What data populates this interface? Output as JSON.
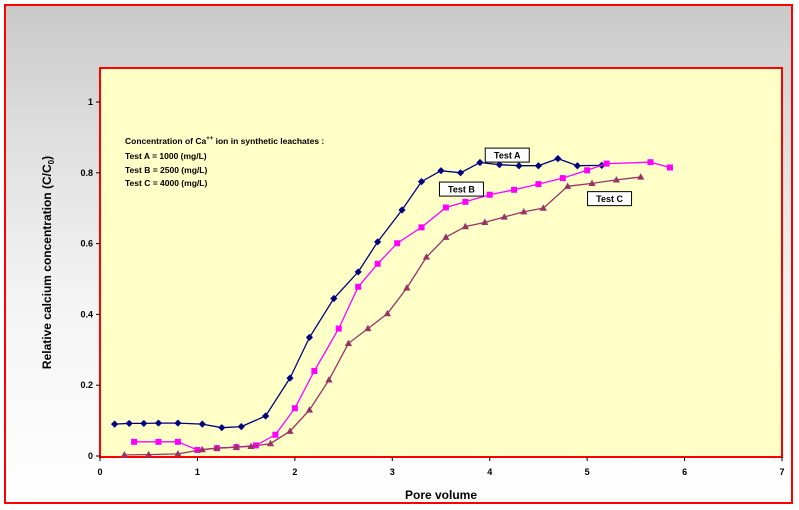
{
  "chart_data": {
    "type": "line",
    "xlabel": "Pore volume",
    "ylabel_main": "Relative calcium concentration (C/C",
    "ylabel_sub": "0",
    "ylabel_end": ")",
    "xlim": [
      0,
      7
    ],
    "ylim": [
      0,
      1.1
    ],
    "xticks": [
      0,
      1,
      2,
      3,
      4,
      5,
      6,
      7
    ],
    "yticks": [
      0,
      0.2,
      0.4,
      0.6,
      0.8,
      1
    ],
    "ytick_labels": [
      "0",
      "0.2",
      "0.4",
      "0.6",
      "0.8",
      "1"
    ],
    "grid": false,
    "plot_background": "#ffffc8",
    "plot_border": "#ff0000",
    "frame_border": "#ff0000",
    "note": {
      "line1_pre": "Concentration of Ca",
      "line1_sup": "++",
      "line1_post": " ion in synthetic leachates :",
      "line2": "Test A = 1000 (mg/L)",
      "line3": "Test B = 2500 (mg/L)",
      "line4": "Test C = 4000 (mg/L)"
    },
    "series": [
      {
        "name": "Test A",
        "color": "#000080",
        "marker": "diamond",
        "label_pos": [
          4.18,
          0.85
        ],
        "points": [
          [
            0.15,
            0.09
          ],
          [
            0.3,
            0.092
          ],
          [
            0.45,
            0.092
          ],
          [
            0.6,
            0.093
          ],
          [
            0.8,
            0.093
          ],
          [
            1.05,
            0.09
          ],
          [
            1.25,
            0.08
          ],
          [
            1.45,
            0.083
          ],
          [
            1.7,
            0.113
          ],
          [
            1.95,
            0.22
          ],
          [
            2.15,
            0.335
          ],
          [
            2.4,
            0.445
          ],
          [
            2.65,
            0.52
          ],
          [
            2.85,
            0.605
          ],
          [
            3.1,
            0.695
          ],
          [
            3.3,
            0.775
          ],
          [
            3.5,
            0.806
          ],
          [
            3.7,
            0.8
          ],
          [
            3.9,
            0.829
          ],
          [
            4.1,
            0.823
          ],
          [
            4.3,
            0.82
          ],
          [
            4.5,
            0.82
          ],
          [
            4.7,
            0.84
          ],
          [
            4.9,
            0.82
          ],
          [
            5.15,
            0.821
          ]
        ]
      },
      {
        "name": "Test B",
        "color": "#ff00ff",
        "marker": "square",
        "label_pos": [
          3.71,
          0.754
        ],
        "points": [
          [
            0.35,
            0.04
          ],
          [
            0.6,
            0.04
          ],
          [
            0.8,
            0.04
          ],
          [
            1.0,
            0.017
          ],
          [
            1.2,
            0.022
          ],
          [
            1.4,
            0.025
          ],
          [
            1.6,
            0.03
          ],
          [
            1.8,
            0.06
          ],
          [
            2.0,
            0.135
          ],
          [
            2.2,
            0.24
          ],
          [
            2.45,
            0.36
          ],
          [
            2.65,
            0.478
          ],
          [
            2.85,
            0.543
          ],
          [
            3.05,
            0.601
          ],
          [
            3.3,
            0.646
          ],
          [
            3.55,
            0.702
          ],
          [
            3.75,
            0.718
          ],
          [
            4.0,
            0.738
          ],
          [
            4.25,
            0.752
          ],
          [
            4.5,
            0.768
          ],
          [
            4.75,
            0.785
          ],
          [
            5.0,
            0.807
          ],
          [
            5.2,
            0.826
          ],
          [
            5.65,
            0.83
          ],
          [
            5.85,
            0.815
          ]
        ]
      },
      {
        "name": "Test C",
        "color": "#993366",
        "marker": "triangle",
        "label_pos": [
          5.23,
          0.727
        ],
        "points": [
          [
            0.25,
            0.003
          ],
          [
            0.5,
            0.004
          ],
          [
            0.8,
            0.006
          ],
          [
            1.05,
            0.018
          ],
          [
            1.2,
            0.022
          ],
          [
            1.4,
            0.025
          ],
          [
            1.55,
            0.027
          ],
          [
            1.75,
            0.035
          ],
          [
            1.95,
            0.07
          ],
          [
            2.15,
            0.13
          ],
          [
            2.35,
            0.215
          ],
          [
            2.55,
            0.318
          ],
          [
            2.75,
            0.36
          ],
          [
            2.95,
            0.402
          ],
          [
            3.15,
            0.475
          ],
          [
            3.35,
            0.562
          ],
          [
            3.55,
            0.618
          ],
          [
            3.75,
            0.648
          ],
          [
            3.95,
            0.66
          ],
          [
            4.15,
            0.675
          ],
          [
            4.35,
            0.69
          ],
          [
            4.55,
            0.7
          ],
          [
            4.8,
            0.762
          ],
          [
            5.05,
            0.77
          ],
          [
            5.3,
            0.78
          ],
          [
            5.55,
            0.788
          ]
        ]
      }
    ]
  }
}
